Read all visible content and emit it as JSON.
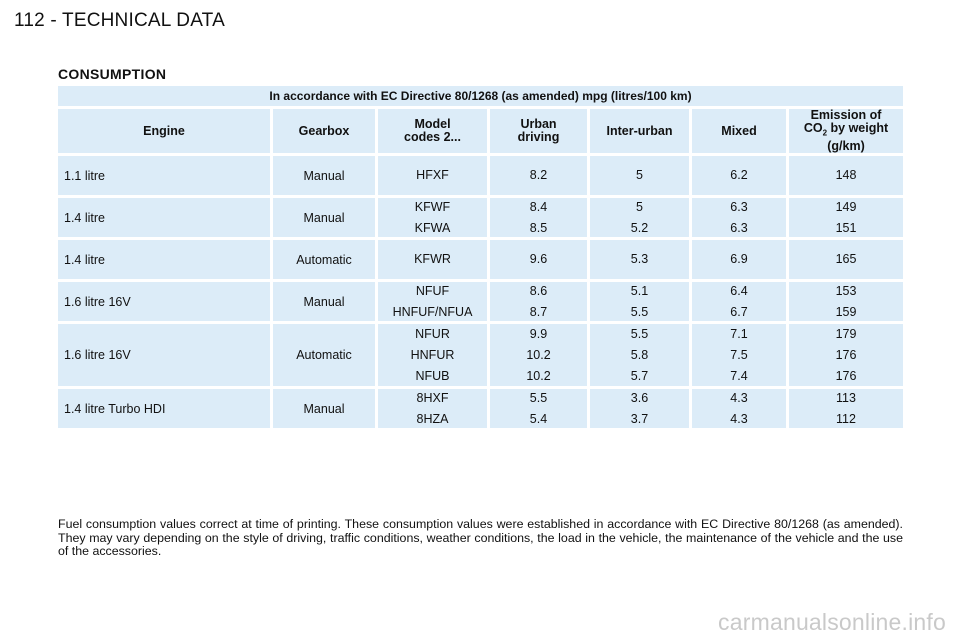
{
  "page_header": "112 - TECHNICAL DATA",
  "section_title": "CONSUMPTION",
  "table": {
    "caption": "In accordance with EC Directive 80/1268 (as amended) mpg (litres/100 km)",
    "headers": {
      "engine": "Engine",
      "gearbox": "Gearbox",
      "model_line1": "Model",
      "model_line2": "codes 2...",
      "urban_line1": "Urban",
      "urban_line2": "driving",
      "interurban": "Inter-urban",
      "mixed": "Mixed",
      "emission_line1": "Emission of",
      "emission_co": "CO",
      "emission_sub": "2",
      "emission_line2_rest": " by weight",
      "emission_line3": "(g/km)"
    },
    "rows": [
      {
        "engine": "1.1 litre",
        "gearbox": "Manual",
        "models": [
          "HFXF"
        ],
        "urban": [
          "8.2"
        ],
        "interurban": [
          "5"
        ],
        "mixed": [
          "6.2"
        ],
        "co2": [
          "148"
        ]
      },
      {
        "engine": "1.4 litre",
        "gearbox": "Manual",
        "models": [
          "KFWF",
          "KFWA"
        ],
        "urban": [
          "8.4",
          "8.5"
        ],
        "interurban": [
          "5",
          "5.2"
        ],
        "mixed": [
          "6.3",
          "6.3"
        ],
        "co2": [
          "149",
          "151"
        ]
      },
      {
        "engine": "1.4 litre",
        "gearbox": "Automatic",
        "models": [
          "KFWR"
        ],
        "urban": [
          "9.6"
        ],
        "interurban": [
          "5.3"
        ],
        "mixed": [
          "6.9"
        ],
        "co2": [
          "165"
        ]
      },
      {
        "engine": "1.6 litre 16V",
        "gearbox": "Manual",
        "models": [
          "NFUF",
          "HNFUF/NFUA"
        ],
        "urban": [
          "8.6",
          "8.7"
        ],
        "interurban": [
          "5.1",
          "5.5"
        ],
        "mixed": [
          "6.4",
          "6.7"
        ],
        "co2": [
          "153",
          "159"
        ]
      },
      {
        "engine": "1.6 litre 16V",
        "gearbox": "Automatic",
        "models": [
          "NFUR",
          "HNFUR",
          "NFUB"
        ],
        "urban": [
          "9.9",
          "10.2",
          "10.2"
        ],
        "interurban": [
          "5.5",
          "5.8",
          "5.7"
        ],
        "mixed": [
          "7.1",
          "7.5",
          "7.4"
        ],
        "co2": [
          "179",
          "176",
          "176"
        ]
      },
      {
        "engine": "1.4 litre Turbo HDI",
        "gearbox": "Manual",
        "models": [
          "8HXF",
          "8HZA"
        ],
        "urban": [
          "5.5",
          "5.4"
        ],
        "interurban": [
          "3.6",
          "3.7"
        ],
        "mixed": [
          "4.3",
          "4.3"
        ],
        "co2": [
          "113",
          "112"
        ]
      }
    ]
  },
  "footnote": "Fuel consumption values correct at time of printing. These consumption values were established in accordance with EC Directive 80/1268 (as amended). They may vary depending on the style of driving, traffic conditions, weather conditions, the load in the vehicle, the maintenance of the vehicle and the use of the accessories.",
  "watermark": "carmanualsonline.info"
}
